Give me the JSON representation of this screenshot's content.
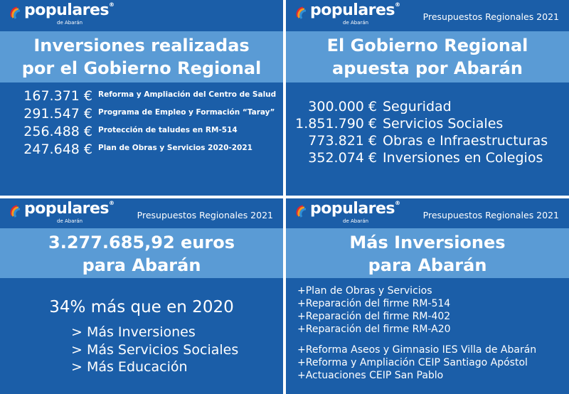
{
  "logo": {
    "word": "populares",
    "reg": "®",
    "sub": "de Abarán"
  },
  "panels": {
    "p1": {
      "title": [
        "Inversiones realizadas",
        "por el Gobierno Regional"
      ],
      "rows": [
        {
          "amount": "167.371 €",
          "label": "Reforma y Ampliación del Centro de Salud"
        },
        {
          "amount": "291.547 €",
          "label": "Programa de Empleo y Formación “Taray”"
        },
        {
          "amount": "256.488 €",
          "label": "Protección de taludes en RM-514"
        },
        {
          "amount": "247.648 €",
          "label": "Plan de Obras y Servicios 2020-2021"
        }
      ]
    },
    "p2": {
      "tag": "Presupuestos Regionales 2021",
      "title": [
        "El Gobierno Regional",
        "apuesta por Abarán"
      ],
      "rows": [
        {
          "amount": "300.000 €",
          "label": "Seguridad"
        },
        {
          "amount": "1.851.790 €",
          "label": "Servicios Sociales"
        },
        {
          "amount": "773.821 €",
          "label": "Obras e Infraestructuras"
        },
        {
          "amount": "352.074 €",
          "label": "Inversiones en Colegios"
        }
      ]
    },
    "p3": {
      "tag": "Presupuestos Regionales 2021",
      "title": [
        "3.277.685,92 euros",
        "para Abarán"
      ],
      "percent": "34% más que en 2020",
      "bullets": [
        "> Más Inversiones",
        "> Más Servicios Sociales",
        "> Más Educación"
      ]
    },
    "p4": {
      "tag": "Presupuestos Regionales 2021",
      "title": [
        "Más Inversiones",
        "para Abarán"
      ],
      "group1": [
        "+Plan de Obras y Servicios",
        "+Reparación del firme RM-514",
        "+Reparación del firme RM-402",
        "+Reparación del firme RM-A20"
      ],
      "group2": [
        "+Reforma Aseos y Gimnasio IES Villa de Abarán",
        "+Reforma y Ampliación CEIP Santiago Apóstol",
        "+Actuaciones CEIP San Pablo"
      ]
    }
  },
  "colors": {
    "panel": "#1b5ea8",
    "band": "#5a9bd5",
    "gutter": "#ffffff"
  }
}
